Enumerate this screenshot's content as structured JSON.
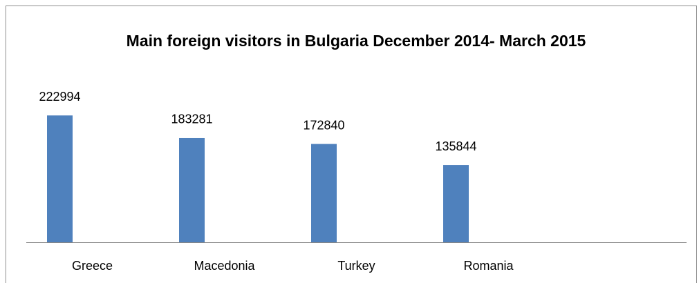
{
  "chart_data": {
    "type": "bar",
    "title": "Main foreign visitors in Bulgaria December 2014- March 2015",
    "categories": [
      "Greece",
      "Macedonia",
      "Turkey",
      "Romania"
    ],
    "values": [
      222994,
      183281,
      172840,
      135844
    ],
    "color": "#4f81bd",
    "ylim": [
      0,
      250000
    ]
  }
}
